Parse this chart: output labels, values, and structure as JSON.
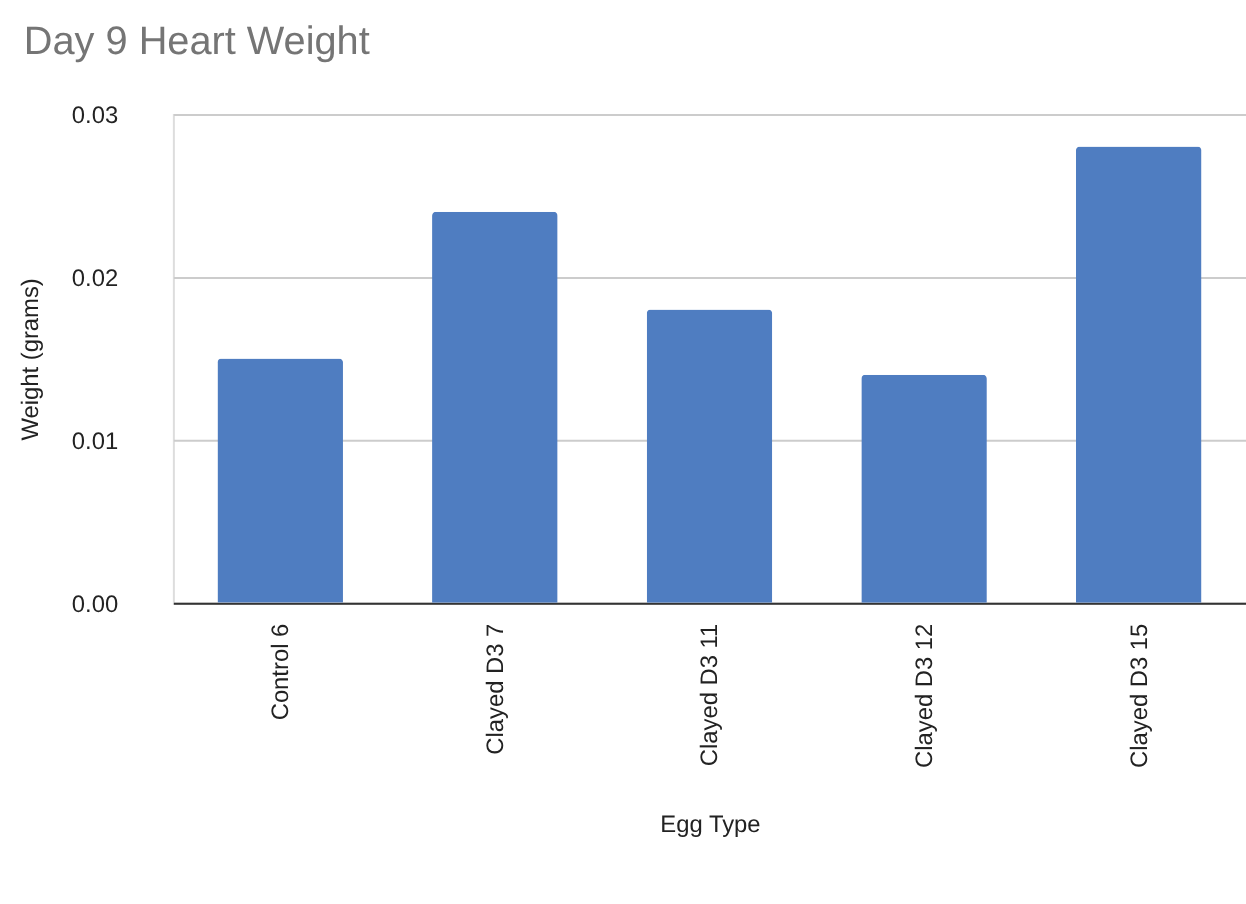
{
  "chart_data": {
    "type": "bar",
    "title": "Day 9 Heart Weight",
    "xlabel": "Egg Type",
    "ylabel": "Weight (grams)",
    "categories": [
      "Control 6",
      "Clayed D3 7",
      "Clayed  D3 11",
      "Clayed  D3 12",
      "Clayed D3 15"
    ],
    "values": [
      0.015,
      0.024,
      0.018,
      0.014,
      0.028
    ],
    "color": "#4f7dc1",
    "ylim": [
      0,
      0.03
    ],
    "yticks": [
      {
        "value": 0,
        "label": "0.00"
      },
      0.01,
      0.02,
      0.03
    ],
    "grid": "y"
  }
}
